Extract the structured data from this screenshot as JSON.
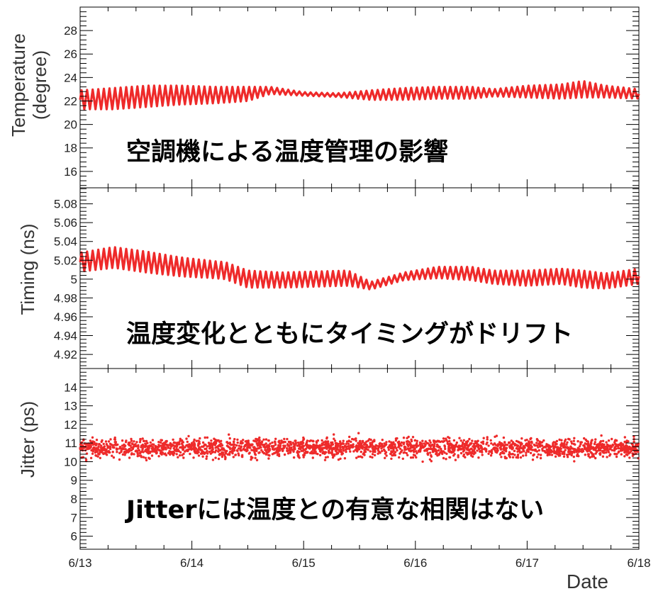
{
  "chart_data": [
    {
      "type": "line",
      "panel": "temperature",
      "ylabel_line1": "Temperature",
      "ylabel_line2": "(degree)",
      "ylim": [
        14.6,
        30.0
      ],
      "yticks": [
        16,
        18,
        20,
        22,
        24,
        26,
        28
      ],
      "ytick_labels": [
        "16",
        "18",
        "20",
        "22",
        "24",
        "26",
        "28"
      ],
      "annotation": "空調機による温度管理の影響",
      "color": "#ee2a2a",
      "series": [
        {
          "x": [
            0,
            0.3,
            0.6,
            0.9,
            1.2,
            1.5,
            1.7,
            2.0,
            2.3,
            2.6,
            2.9,
            3.2,
            3.5,
            3.7,
            4.0,
            4.3,
            4.5,
            4.7,
            5.0
          ],
          "y": [
            22.1,
            22.2,
            22.4,
            22.5,
            22.5,
            22.6,
            22.9,
            22.6,
            22.5,
            22.5,
            22.6,
            22.7,
            22.7,
            22.7,
            22.8,
            22.8,
            23.0,
            22.8,
            22.6
          ],
          "amplitude": [
            0.8,
            0.9,
            0.9,
            0.8,
            0.7,
            0.6,
            0.3,
            0.15,
            0.15,
            0.4,
            0.5,
            0.5,
            0.5,
            0.3,
            0.5,
            0.6,
            0.7,
            0.5,
            0.4
          ]
        }
      ]
    },
    {
      "type": "line",
      "panel": "timing",
      "ylabel": "Timing (ns)",
      "ylim": [
        4.905,
        5.097
      ],
      "yticks": [
        4.92,
        4.94,
        4.96,
        4.98,
        5.0,
        5.02,
        5.04,
        5.06,
        5.08
      ],
      "ytick_labels": [
        "4.92",
        "4.94",
        "4.96",
        "4.98",
        "5",
        "5.02",
        "5.04",
        "5.06",
        "5.08"
      ],
      "annotation": "温度変化とともにタイミングがドリフト",
      "color": "#ee2a2a",
      "series": [
        {
          "x": [
            0,
            0.3,
            0.6,
            0.9,
            1.2,
            1.3,
            1.5,
            1.8,
            2.1,
            2.4,
            2.6,
            2.9,
            3.2,
            3.5,
            3.7,
            4.0,
            4.3,
            4.5,
            4.7,
            5.0
          ],
          "y": [
            5.018,
            5.023,
            5.018,
            5.013,
            5.01,
            5.009,
            5.0,
            4.999,
            5.0,
            5.001,
            4.993,
            5.003,
            5.007,
            5.006,
            5.002,
            5.001,
            5.003,
            5.0,
            4.998,
            5.003
          ],
          "amplitude": [
            0.01,
            0.011,
            0.011,
            0.01,
            0.009,
            0.009,
            0.009,
            0.008,
            0.008,
            0.008,
            0.004,
            0.004,
            0.006,
            0.007,
            0.007,
            0.008,
            0.008,
            0.009,
            0.008,
            0.008
          ]
        }
      ]
    },
    {
      "type": "scatter",
      "panel": "jitter",
      "ylabel": "Jitter (ps)",
      "ylim": [
        5.3,
        15.0
      ],
      "yticks": [
        6,
        7,
        8,
        9,
        10,
        11,
        12,
        13,
        14
      ],
      "ytick_labels": [
        "6",
        "7",
        "8",
        "9",
        "10",
        "11",
        "12",
        "13",
        "14"
      ],
      "annotation": "Jitterには温度との有意な相関はない",
      "color": "#ee2a2a",
      "series": [
        {
          "mean": 10.75,
          "spread": 0.35,
          "range": [
            10.0,
            11.6
          ]
        }
      ]
    }
  ],
  "x_axis": {
    "label": "Date",
    "xlim": [
      0,
      5
    ],
    "ticks": [
      0,
      1,
      2,
      3,
      4,
      5
    ],
    "tick_labels": [
      "6/13",
      "6/14",
      "6/15",
      "6/16",
      "6/17",
      "6/18"
    ]
  }
}
